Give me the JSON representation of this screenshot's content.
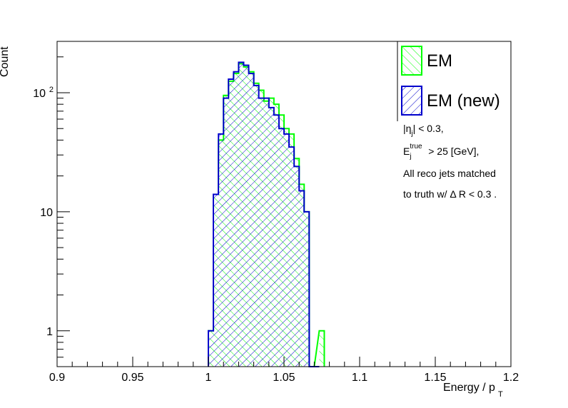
{
  "chart_data": {
    "type": "histogram",
    "title": "",
    "xlabel": "Energy / p",
    "xlabel_sub": "T",
    "ylabel": "Count",
    "xlim": [
      0.9,
      1.2
    ],
    "ylim": [
      0.5,
      270
    ],
    "log_y": true,
    "grid": false,
    "x_ticks": [
      "0.9",
      "0.95",
      "1",
      "1.05",
      "1.1",
      "1.15",
      "1.2"
    ],
    "y_ticks": [
      {
        "value": 1,
        "label": "1"
      },
      {
        "value": 10,
        "label": "10"
      },
      {
        "value": 100,
        "label": "10",
        "sup": "2"
      }
    ],
    "bin_width": 0.00333,
    "bins_start": [
      1.0,
      1.0033,
      1.0067,
      1.01,
      1.0133,
      1.0167,
      1.02,
      1.0233,
      1.0267,
      1.03,
      1.0333,
      1.0367,
      1.04,
      1.0433,
      1.0467,
      1.05,
      1.0533,
      1.0567,
      1.06,
      1.0633,
      1.0667,
      1.07,
      1.0733
    ],
    "series": [
      {
        "name": "EM",
        "color": "#00ff00",
        "hatch": "\\\\",
        "values": [
          1,
          14,
          40,
          95,
          125,
          145,
          175,
          165,
          150,
          120,
          105,
          85,
          90,
          80,
          65,
          50,
          45,
          28,
          17,
          10,
          0,
          0,
          1
        ]
      },
      {
        "name": "EM (new)",
        "color": "#0000cc",
        "hatch": "//",
        "values": [
          1,
          14,
          45,
          90,
          130,
          150,
          180,
          170,
          145,
          115,
          90,
          90,
          75,
          65,
          50,
          45,
          35,
          24,
          15,
          10,
          0,
          0,
          0
        ]
      }
    ],
    "legend_position": "top-right",
    "annotations": [
      {
        "main": "|η",
        "sub": "j",
        "rest": "| < 0.3,"
      },
      {
        "main": "E",
        "sub": "j",
        "sup": "true",
        "rest": " > 25 [GeV],"
      },
      {
        "main": "All reco jets matched"
      },
      {
        "main": "to truth w/ Δ R < 0.3 ."
      }
    ]
  }
}
